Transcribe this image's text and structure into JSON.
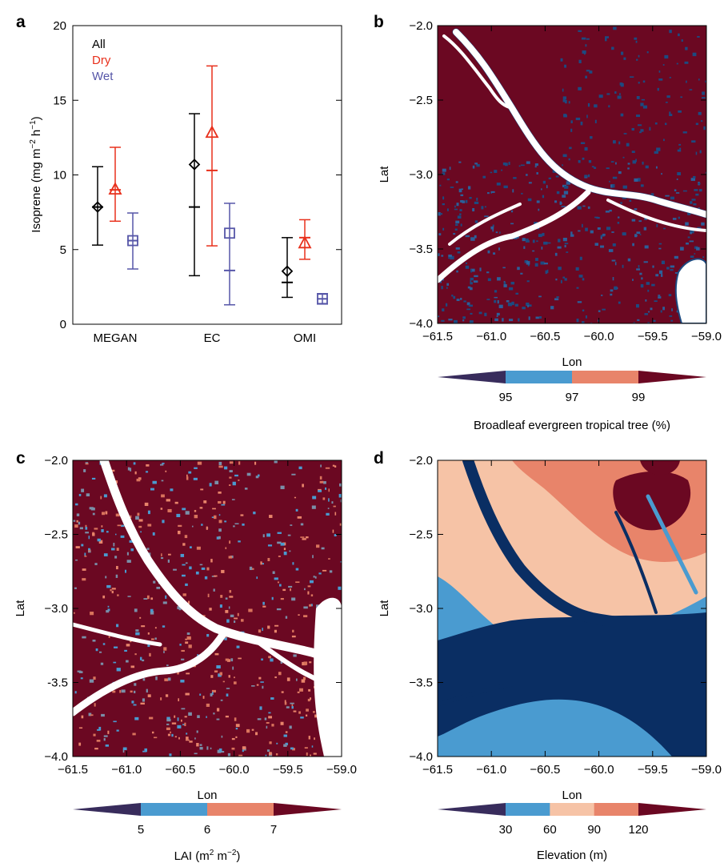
{
  "chart_data": [
    {
      "panel": "a",
      "type": "scatter",
      "categories": [
        "MEGAN",
        "EC",
        "OMI"
      ],
      "ylabel": "Isoprene (mg m",
      "ylabel_sup1": "−2",
      "ylabel_mid": " h",
      "ylabel_sup2": "−1",
      "ylabel_end": ")",
      "ylim": [
        0,
        20
      ],
      "yticks": [
        "0",
        "5",
        "10",
        "15",
        "20"
      ],
      "legend": [
        "All",
        "Dry",
        "Wet"
      ],
      "series": [
        {
          "name": "All",
          "marker": "diamond",
          "color": "#000000",
          "mean": [
            7.85,
            10.7,
            3.55
          ],
          "median": [
            7.85,
            7.85,
            2.8
          ],
          "low": [
            5.3,
            3.25,
            1.8
          ],
          "high": [
            10.55,
            14.1,
            5.8
          ]
        },
        {
          "name": "Dry",
          "marker": "triangle",
          "color": "#e8301c",
          "mean": [
            9.0,
            12.8,
            5.4
          ],
          "median": [
            9.0,
            10.3,
            5.8
          ],
          "low": [
            6.9,
            5.25,
            4.35
          ],
          "high": [
            11.85,
            17.3,
            7.0
          ]
        },
        {
          "name": "Wet",
          "marker": "square",
          "color": "#5656a8",
          "mean": [
            5.6,
            6.1,
            1.7
          ],
          "median": [
            5.6,
            3.6,
            1.7
          ],
          "low": [
            3.7,
            1.3,
            1.35
          ],
          "high": [
            7.45,
            8.1,
            2.05
          ]
        }
      ]
    },
    {
      "panel": "b",
      "type": "heatmap",
      "xlabel": "Lon",
      "ylabel": "Lat",
      "xticks": [
        "−61.5",
        "−61.0",
        "−60.5",
        "−60.0",
        "−59.5",
        "−59.0"
      ],
      "yticks": [
        "−2.0",
        "−2.5",
        "−3.0",
        "−3.5",
        "−4.0"
      ],
      "xlim": [
        -61.5,
        -59.0
      ],
      "ylim": [
        -4.0,
        -2.0
      ],
      "colorbar_label": "Broadleaf evergreen tropical tree (%)",
      "colorbar_ticks": [
        "95",
        "97",
        "99"
      ],
      "colors": [
        "#382c5c",
        "#4a9bd0",
        "#e8846a",
        "#6b0822"
      ]
    },
    {
      "panel": "c",
      "type": "heatmap",
      "xlabel": "Lon",
      "ylabel": "Lat",
      "xticks": [
        "−61.5",
        "−61.0",
        "−60.5",
        "−60.0",
        "−59.5",
        "−59.0"
      ],
      "yticks": [
        "−2.0",
        "−2.5",
        "−3.0",
        "-3.5",
        "−4.0"
      ],
      "xlim": [
        -61.5,
        -59.0
      ],
      "ylim": [
        -4.0,
        -2.0
      ],
      "colorbar_label": "LAI (m",
      "colorbar_label_sup1": "2",
      "colorbar_label_mid": " m",
      "colorbar_label_sup2": "−2",
      "colorbar_label_end": ")",
      "colorbar_ticks": [
        "5",
        "6",
        "7"
      ],
      "colors": [
        "#382c5c",
        "#4a9bd0",
        "#e8846a",
        "#6b0822"
      ]
    },
    {
      "panel": "d",
      "type": "heatmap",
      "xlabel": "Lon",
      "ylabel": "Lat",
      "xticks": [
        "−61.5",
        "−61.0",
        "−60.5",
        "−60.0",
        "−59.5",
        "−59.0"
      ],
      "yticks": [
        "−2.0",
        "−2.5",
        "−3.0",
        "−3.5",
        "−4.0"
      ],
      "xlim": [
        -61.5,
        -59.0
      ],
      "ylim": [
        -4.0,
        -2.0
      ],
      "colorbar_label": "Elevation (m)",
      "colorbar_ticks": [
        "30",
        "60",
        "90",
        "120"
      ],
      "colors": [
        "#382c5c",
        "#4a9bd0",
        "#f6c3a6",
        "#e8846a",
        "#6b0822"
      ]
    }
  ],
  "panel_labels": [
    "a",
    "b",
    "c",
    "d"
  ]
}
